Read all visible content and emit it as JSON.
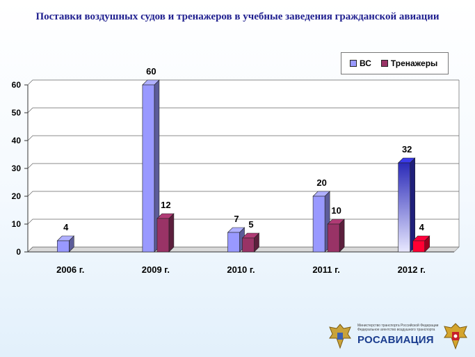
{
  "title": "Поставки воздушных судов и тренажеров в учебные заведения гражданской авиации",
  "chart_data": {
    "type": "bar",
    "categories": [
      "2006 г.",
      "2009 г.",
      "2010 г.",
      "2011 г.",
      "2012 г."
    ],
    "series": [
      {
        "name": "ВС",
        "values": [
          4,
          60,
          7,
          20,
          32
        ],
        "color": "#9999ff"
      },
      {
        "name": "Тренажеры",
        "values": [
          null,
          12,
          5,
          10,
          4
        ],
        "color": "#993366"
      }
    ],
    "ylim": [
      0,
      60
    ],
    "yticks": [
      0,
      10,
      20,
      30,
      40,
      50,
      60
    ],
    "grid": true,
    "legend": "top-right",
    "highlight_colors": {
      "vs_2012": "#3333cc",
      "tr_2012": "#ff0033"
    }
  },
  "footer": {
    "agency_line1": "Министерство транспорта Российской Федерации",
    "agency_line2": "Федеральное агентство воздушного транспорта",
    "agency_name": "РОСАВИАЦИЯ",
    "left_emblem": "eagle-emblem-icon",
    "right_emblem": "coat-of-arms-icon"
  }
}
